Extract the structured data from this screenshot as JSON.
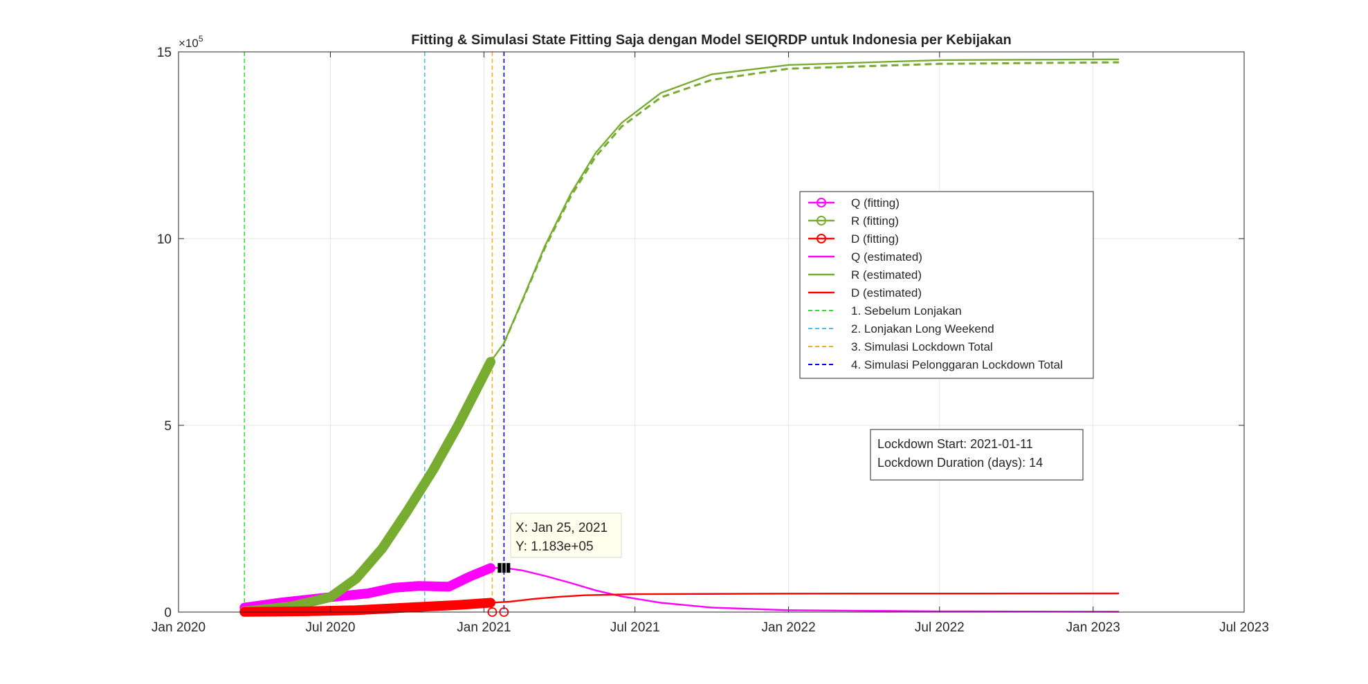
{
  "chart_data": {
    "type": "line",
    "title": "Fitting & Simulasi State Fitting Saja dengan Model SEIQRDP untuk Indonesia per Kebijakan",
    "xlabel": "",
    "ylabel": "",
    "x_range": [
      "2020-01-01",
      "2023-07-01"
    ],
    "x_ticks": [
      {
        "date": "2020-01-01",
        "label": "Jan 2020"
      },
      {
        "date": "2020-07-01",
        "label": "Jul 2020"
      },
      {
        "date": "2021-01-01",
        "label": "Jan 2021"
      },
      {
        "date": "2021-07-01",
        "label": "Jul 2021"
      },
      {
        "date": "2022-01-01",
        "label": "Jan 2022"
      },
      {
        "date": "2022-07-01",
        "label": "Jul 2022"
      },
      {
        "date": "2023-01-01",
        "label": "Jan 2023"
      },
      {
        "date": "2023-07-01",
        "label": "Jul 2023"
      }
    ],
    "ylim": [
      0,
      1500000
    ],
    "y_ticks": [
      {
        "value": 0,
        "label": "0"
      },
      {
        "value": 500000,
        "label": "5"
      },
      {
        "value": 1000000,
        "label": "10"
      },
      {
        "value": 1500000,
        "label": "15"
      }
    ],
    "y_exponent_label": "×10",
    "y_exponent_power": "5",
    "grid": true,
    "legend_position": "upper-right-center",
    "series": [
      {
        "name": "Q (fitting)",
        "color": "#ff00ff",
        "style": "fitting",
        "points": [
          [
            "2020-03-20",
            12000
          ],
          [
            "2020-05-01",
            25000
          ],
          [
            "2020-07-01",
            40000
          ],
          [
            "2020-08-15",
            50000
          ],
          [
            "2020-09-15",
            65000
          ],
          [
            "2020-10-15",
            70000
          ],
          [
            "2020-11-20",
            68000
          ],
          [
            "2020-12-15",
            95000
          ],
          [
            "2021-01-09",
            118000
          ]
        ]
      },
      {
        "name": "R (fitting)",
        "color": "#77ac30",
        "style": "fitting",
        "points": [
          [
            "2020-03-20",
            2000
          ],
          [
            "2020-05-15",
            15000
          ],
          [
            "2020-07-01",
            40000
          ],
          [
            "2020-08-01",
            90000
          ],
          [
            "2020-09-01",
            170000
          ],
          [
            "2020-10-01",
            270000
          ],
          [
            "2020-11-01",
            380000
          ],
          [
            "2020-12-01",
            500000
          ],
          [
            "2021-01-09",
            670000
          ]
        ]
      },
      {
        "name": "D (fitting)",
        "color": "#ff0000",
        "style": "fitting",
        "points": [
          [
            "2020-03-20",
            300
          ],
          [
            "2020-06-01",
            2000
          ],
          [
            "2020-08-01",
            5000
          ],
          [
            "2020-10-01",
            12000
          ],
          [
            "2020-12-01",
            19000
          ],
          [
            "2021-01-09",
            25000
          ]
        ]
      },
      {
        "name": "Q (estimated)",
        "color": "#ff00ff",
        "style": "solid",
        "points": [
          [
            "2021-01-09",
            118000
          ],
          [
            "2021-01-25",
            118300
          ],
          [
            "2021-02-15",
            112000
          ],
          [
            "2021-03-15",
            97000
          ],
          [
            "2021-04-15",
            78000
          ],
          [
            "2021-05-15",
            58000
          ],
          [
            "2021-06-15",
            42000
          ],
          [
            "2021-08-01",
            25000
          ],
          [
            "2021-10-01",
            12000
          ],
          [
            "2022-01-01",
            5000
          ],
          [
            "2022-07-01",
            2000
          ],
          [
            "2023-02-01",
            1000
          ]
        ]
      },
      {
        "name": "R (estimated)",
        "color": "#77ac30",
        "style": "solid",
        "points": [
          [
            "2021-01-09",
            670000
          ],
          [
            "2021-01-25",
            720000
          ],
          [
            "2021-02-15",
            830000
          ],
          [
            "2021-03-15",
            980000
          ],
          [
            "2021-04-15",
            1120000
          ],
          [
            "2021-05-15",
            1230000
          ],
          [
            "2021-06-15",
            1310000
          ],
          [
            "2021-08-01",
            1390000
          ],
          [
            "2021-10-01",
            1440000
          ],
          [
            "2022-01-01",
            1465000
          ],
          [
            "2022-07-01",
            1478000
          ],
          [
            "2023-02-01",
            1480000
          ]
        ]
      },
      {
        "name": "D (estimated)",
        "color": "#ff0000",
        "style": "solid",
        "points": [
          [
            "2021-01-09",
            25000
          ],
          [
            "2021-02-01",
            28000
          ],
          [
            "2021-03-01",
            35000
          ],
          [
            "2021-04-01",
            41000
          ],
          [
            "2021-05-01",
            45000
          ],
          [
            "2021-07-01",
            48000
          ],
          [
            "2022-01-01",
            49500
          ],
          [
            "2023-02-01",
            50000
          ]
        ]
      },
      {
        "name": "R (estimated, dashed)",
        "color": "#77ac30",
        "style": "dashed",
        "points": [
          [
            "2021-01-25",
            720000
          ],
          [
            "2021-02-15",
            828000
          ],
          [
            "2021-03-15",
            975000
          ],
          [
            "2021-04-15",
            1113000
          ],
          [
            "2021-05-15",
            1220000
          ],
          [
            "2021-06-15",
            1300000
          ],
          [
            "2021-08-01",
            1378000
          ],
          [
            "2021-10-01",
            1425000
          ],
          [
            "2022-01-01",
            1455000
          ],
          [
            "2022-07-01",
            1468000
          ],
          [
            "2023-02-01",
            1472000
          ]
        ]
      }
    ],
    "vertical_lines": [
      {
        "name": "1. Sebelum Lonjakan",
        "color": "#33dd33",
        "date": "2020-03-20"
      },
      {
        "name": "2. Lonjakan Long Weekend",
        "color": "#4dbeee",
        "date": "2020-10-22"
      },
      {
        "name": "3. Simulasi Lockdown Total",
        "color": "#edb120",
        "date": "2021-01-11"
      },
      {
        "name": "4. Simulasi Pelonggaran Lockdown Total",
        "color": "#0000ff",
        "date": "2021-01-25"
      }
    ],
    "legend": [
      {
        "label": "Q (fitting)",
        "color": "#ff00ff",
        "kind": "marker"
      },
      {
        "label": "R (fitting)",
        "color": "#77ac30",
        "kind": "marker"
      },
      {
        "label": "D (fitting)",
        "color": "#ff0000",
        "kind": "marker"
      },
      {
        "label": "Q (estimated)",
        "color": "#ff00ff",
        "kind": "line"
      },
      {
        "label": "R (estimated)",
        "color": "#77ac30",
        "kind": "line"
      },
      {
        "label": "D (estimated)",
        "color": "#ff0000",
        "kind": "line"
      },
      {
        "label": "1. Sebelum Lonjakan",
        "color": "#33dd33",
        "kind": "dashed"
      },
      {
        "label": "2. Lonjakan Long Weekend",
        "color": "#4dbeee",
        "kind": "dashed"
      },
      {
        "label": "3. Simulasi Lockdown Total",
        "color": "#edb120",
        "kind": "dashed"
      },
      {
        "label": "4. Simulasi Pelonggaran Lockdown Total",
        "color": "#0000ff",
        "kind": "dashed"
      }
    ],
    "info_box": {
      "line1": "Lockdown Start: 2021-01-11",
      "line2": "Lockdown Duration (days): 14"
    },
    "datatip": {
      "x": "X: Jan 25, 2021",
      "y": "Y: 1.183e+05",
      "date": "2021-01-25",
      "value": 118300
    },
    "zero_markers": [
      {
        "date": "2021-01-11",
        "value": 0,
        "color": "#ff0000"
      },
      {
        "date": "2021-01-25",
        "value": 0,
        "color": "#ff0000"
      }
    ]
  }
}
